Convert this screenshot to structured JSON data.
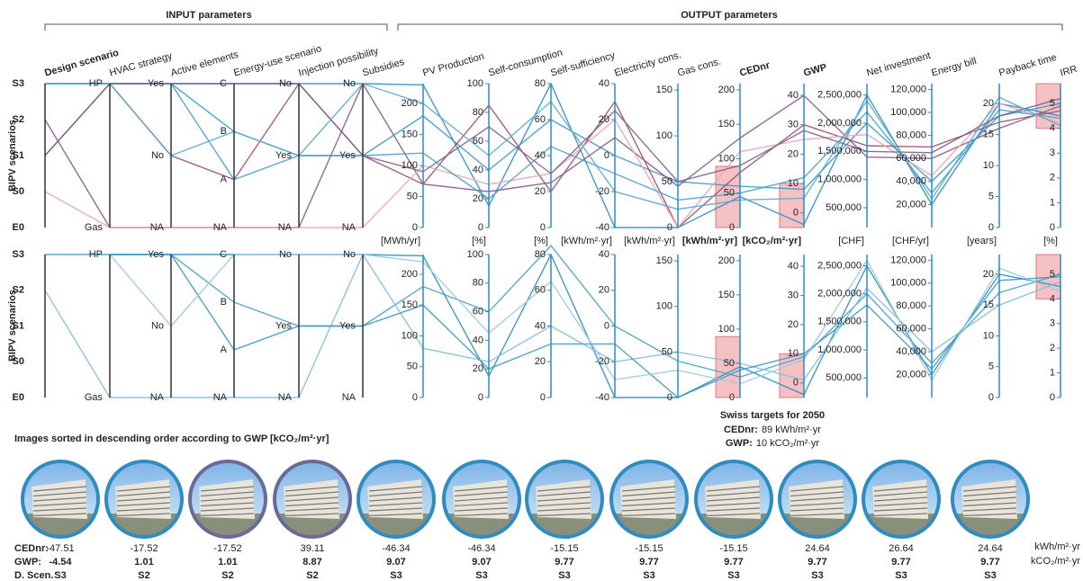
{
  "chart_data": {
    "type": "parallel",
    "group_titles": [
      "INPUT  parameters",
      "OUTPUT  parameters"
    ],
    "row_label": "BIPV scenarios",
    "axes": [
      {
        "name": "Design scenario",
        "bold": true,
        "categories": [
          "S3",
          "S2",
          "S1",
          "S0",
          "E0"
        ]
      },
      {
        "name": "HVAC strategy",
        "categories": [
          "HP",
          "Gas"
        ]
      },
      {
        "name": "Active elements",
        "categories": [
          "Yes",
          "No",
          "NA"
        ]
      },
      {
        "name": "Energy-use scenario",
        "categories": [
          "C",
          "B",
          "A",
          "NA"
        ]
      },
      {
        "name": "Injection possibility",
        "categories": [
          "No",
          "Yes",
          "NA"
        ]
      },
      {
        "name": "Subsidies",
        "categories": [
          "No",
          "Yes",
          "NA"
        ]
      },
      {
        "name": "PV Production",
        "unit": "[MWh/yr]",
        "ylim": [
          0,
          232
        ],
        "yticks": [
          0,
          50,
          100,
          150,
          200
        ]
      },
      {
        "name": "Self-consumption",
        "unit": "[%]",
        "ylim": [
          0,
          100
        ],
        "yticks": [
          0,
          20,
          40,
          60,
          80,
          100
        ]
      },
      {
        "name": "Self-sufficiency",
        "unit": "[%]",
        "ylim": [
          0,
          80
        ],
        "yticks": [
          0,
          20,
          40,
          60,
          80
        ]
      },
      {
        "name": "Electricity cons.",
        "unit": "[kWh/m²·yr]",
        "ylim": [
          -40,
          40
        ],
        "yticks": [
          -40,
          -20,
          0,
          20,
          40
        ]
      },
      {
        "name": "Gas cons.",
        "unit": "[kWh/m²·yr]",
        "ylim": [
          0,
          157
        ],
        "yticks": [
          0,
          50,
          100,
          150
        ]
      },
      {
        "name": "CEDnr",
        "bold": true,
        "unit": "[kWh/m²·yr]",
        "ylim": [
          0,
          209
        ],
        "yticks": [
          0,
          50,
          100,
          150,
          200
        ]
      },
      {
        "name": "GWP",
        "bold": true,
        "unit": "[kCO₂/m²·yr]",
        "ylim": [
          -5,
          44
        ],
        "yticks": [
          0,
          10,
          20,
          30,
          40
        ]
      },
      {
        "name": "Net investment",
        "unit": "[CHF]",
        "ylim": [
          150000,
          2700000
        ],
        "yticks": [
          {
            "value": 500000,
            "label": "500,000"
          },
          {
            "value": 1000000,
            "label": "1,000,000"
          },
          {
            "value": 1500000,
            "label": "1,500,000"
          },
          {
            "value": 2000000,
            "label": "2,000,000"
          },
          {
            "value": 2500000,
            "label": "2,500,000"
          }
        ]
      },
      {
        "name": "Energy bill",
        "unit": "[CHF/yr]",
        "ylim": [
          0,
          125000
        ],
        "yticks": [
          {
            "value": 20000,
            "label": "20,000"
          },
          {
            "value": 40000,
            "label": "40,000"
          },
          {
            "value": 60000,
            "label": "60,000"
          },
          {
            "value": 80000,
            "label": "80,000"
          },
          {
            "value": 100000,
            "label": "100,000"
          },
          {
            "value": 120000,
            "label": "120,000"
          }
        ]
      },
      {
        "name": "Payback time",
        "unit": "[years]",
        "ylim": [
          0,
          23.2
        ],
        "yticks": [
          0,
          5,
          10,
          15,
          20
        ]
      },
      {
        "name": "IRR",
        "unit": "[%]",
        "ylim": [
          0,
          5.8
        ],
        "yticks": [
          0,
          1,
          2,
          3,
          4,
          5
        ]
      }
    ],
    "panels": [
      {
        "highlights": [
          {
            "axis": 11,
            "range": [
              0,
              89
            ]
          },
          {
            "axis": 12,
            "range": [
              -5,
              10
            ]
          },
          {
            "axis": 16,
            "range": [
              4,
              5.8
            ]
          }
        ],
        "lines": [
          {
            "color": "#2f8fc0",
            "values": [
              "S3",
              "HP",
              "Yes",
              "C",
              "No",
              "No",
              230,
              15,
              80,
              -40,
              0,
              45,
              -4,
              2500000,
              20000,
              20,
              4.5
            ]
          },
          {
            "color": "#3c9ac8",
            "values": [
              "S3",
              "HP",
              "Yes",
              "B",
              "Yes",
              "Yes",
              180,
              40,
              60,
              0,
              50,
              60,
              8,
              2000000,
              40000,
              18,
              5
            ]
          },
          {
            "color": "#a0506e",
            "values": [
              "S1",
              "HP",
              "No",
              "A",
              "No",
              "Yes",
              70,
              85,
              20,
              30,
              0,
              80,
              30,
              1600000,
              70000,
              17,
              4.7
            ]
          },
          {
            "color": "#8a5a8a",
            "values": [
              "S2",
              "Gas",
              "NA",
              "NA",
              "NA",
              "No",
              70,
              25,
              25,
              10,
              45,
              130,
              40,
              1400000,
              60000,
              16,
              4.9
            ]
          },
          {
            "color": "#e8a8b0",
            "values": [
              "S0",
              "Gas",
              "NA",
              "NA",
              "NA",
              "NA",
              100,
              30,
              30,
              20,
              0,
              110,
              25,
              1800000,
              45000,
              20,
              4.2
            ]
          },
          {
            "color": "#4aa0c8",
            "values": [
              "S3",
              "HP",
              "Yes",
              "A",
              "Yes",
              "Yes",
              120,
              20,
              45,
              -10,
              30,
              50,
              12,
              2200000,
              30000,
              19,
              4.4
            ]
          },
          {
            "color": "#7a6090",
            "values": [
              "S1",
              "HP",
              "Yes",
              "C",
              "No",
              "Yes",
              90,
              70,
              30,
              25,
              50,
              90,
              28,
              1500000,
              65000,
              18,
              5.2
            ]
          },
          {
            "color": "#5aaad0",
            "values": [
              "S3",
              "HP",
              "No",
              "B",
              "Yes",
              "No",
              200,
              50,
              70,
              -20,
              20,
              40,
              5,
              2400000,
              25000,
              21,
              4.1
            ]
          }
        ]
      },
      {
        "highlights": [
          {
            "axis": 11,
            "range": [
              0,
              89
            ]
          },
          {
            "axis": 12,
            "range": [
              -5,
              10
            ]
          },
          {
            "axis": 16,
            "range": [
              4,
              5.8
            ]
          }
        ],
        "lines": [
          {
            "color": "#2f8fc0",
            "values": [
              "S3",
              "HP",
              "Yes",
              "C",
              "No",
              "No",
              230,
              15,
              80,
              -40,
              0,
              45,
              -4,
              2500000,
              20000,
              20,
              4.5
            ]
          },
          {
            "color": "#4aa0c8",
            "values": [
              "S3",
              "HP",
              "Yes",
              "B",
              "Yes",
              "Yes",
              180,
              60,
              85,
              0,
              40,
              30,
              9,
              2000000,
              30000,
              17,
              5
            ]
          },
          {
            "color": "#7fbedd",
            "values": [
              "S2",
              "Gas",
              "NA",
              "NA",
              "NA",
              "No",
              80,
              25,
              40,
              -20,
              50,
              50,
              1,
              2100000,
              40000,
              15,
              4.7
            ]
          },
          {
            "color": "#3c9ac8",
            "values": [
              "S3",
              "HP",
              "Yes",
              "A",
              "Yes",
              "Yes",
              150,
              20,
              30,
              -10,
              0,
              40,
              10,
              1800000,
              25000,
              19,
              4.9
            ]
          },
          {
            "color": "#9cc9e0",
            "values": [
              "S3",
              "HP",
              "No",
              "C",
              "No",
              "No",
              220,
              45,
              65,
              -30,
              30,
              20,
              8,
              2600000,
              15000,
              21,
              4.3
            ]
          }
        ]
      }
    ],
    "targets": {
      "title": "Swiss targets for 2050",
      "items": [
        {
          "label": "CEDnr:",
          "text": "89 kWh/m²·yr"
        },
        {
          "label": "GWP:",
          "text": "10 kCO₂/m²·yr"
        }
      ]
    },
    "images_title": "Images sorted in descending order according to GWP [kCO₂/m²·yr]",
    "image_frames": [
      "#2e8cc0",
      "#2e8cc0",
      "#6a6a9a",
      "#6a6a9a",
      "#2e8cc0",
      "#2e8cc0",
      "#2e8cc0",
      "#2e8cc0",
      "#2e8cc0",
      "#2e8cc0",
      "#2e8cc0",
      "#2e8cc0"
    ],
    "captions": {
      "row_labels": [
        "CEDnr:",
        "GWP:",
        "D. Scen."
      ],
      "units": [
        "kWh/m²·yr",
        "kCO₂/m²·yr"
      ],
      "cednr": [
        -47.51,
        -17.52,
        -17.52,
        39.11,
        -46.34,
        -46.34,
        -15.15,
        -15.15,
        -15.15,
        24.64,
        26.64,
        24.64
      ],
      "gwp": [
        -4.54,
        1.01,
        1.01,
        8.87,
        9.07,
        9.07,
        9.77,
        9.77,
        9.77,
        9.77,
        9.77,
        9.77
      ],
      "scenario": [
        "S3",
        "S2",
        "S2",
        "S2",
        "S3",
        "S3",
        "S3",
        "S3",
        "S3",
        "S3",
        "S3",
        "S3"
      ]
    }
  }
}
